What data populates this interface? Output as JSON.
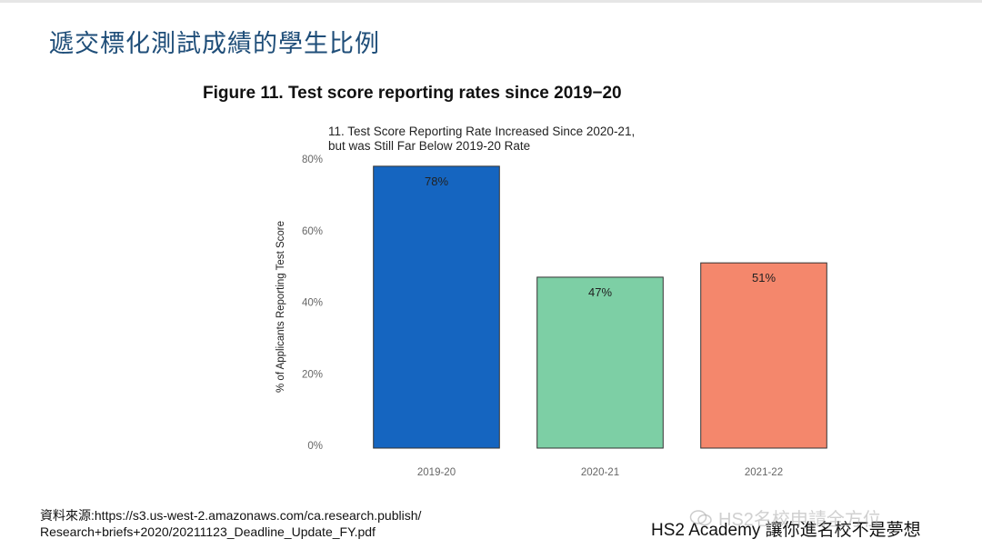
{
  "slide": {
    "title": "遞交標化測試成績的學生比例",
    "figure_title": "Figure 11. Test score reporting rates since 2019−20",
    "source_line1": "資料來源:https://s3.us-west-2.amazonaws.com/ca.research.publish/",
    "source_line2": "Research+briefs+2020/20211123_Deadline_Update_FY.pdf",
    "footer": "HS2 Academy 讓你進名校不是夢想",
    "watermark": "HS2名校申請全方位"
  },
  "colors": {
    "title": "#1f4e79",
    "bar_2019": "#1565c0",
    "bar_2020": "#7dcfa5",
    "bar_2021": "#f4876c"
  },
  "chart_data": {
    "type": "bar",
    "title_line1": "11. Test Score Reporting Rate Increased Since 2020-21,",
    "title_line2": "but was Still Far Below 2019-20 Rate",
    "categories": [
      "2019-20",
      "2020-21",
      "2021-22"
    ],
    "values": [
      78,
      47,
      51
    ],
    "data_labels": [
      "78%",
      "47%",
      "51%"
    ],
    "colors": [
      "#1565c0",
      "#7dcfa5",
      "#f4876c"
    ],
    "ylabel": "% of Applicants Reporting Test Score",
    "xlabel": "",
    "ylim": [
      0,
      80
    ],
    "yticks": [
      0,
      20,
      40,
      60,
      80
    ],
    "ytick_labels": [
      "0%",
      "20%",
      "40%",
      "60%",
      "80%"
    ],
    "grid": false,
    "legend": "none"
  }
}
